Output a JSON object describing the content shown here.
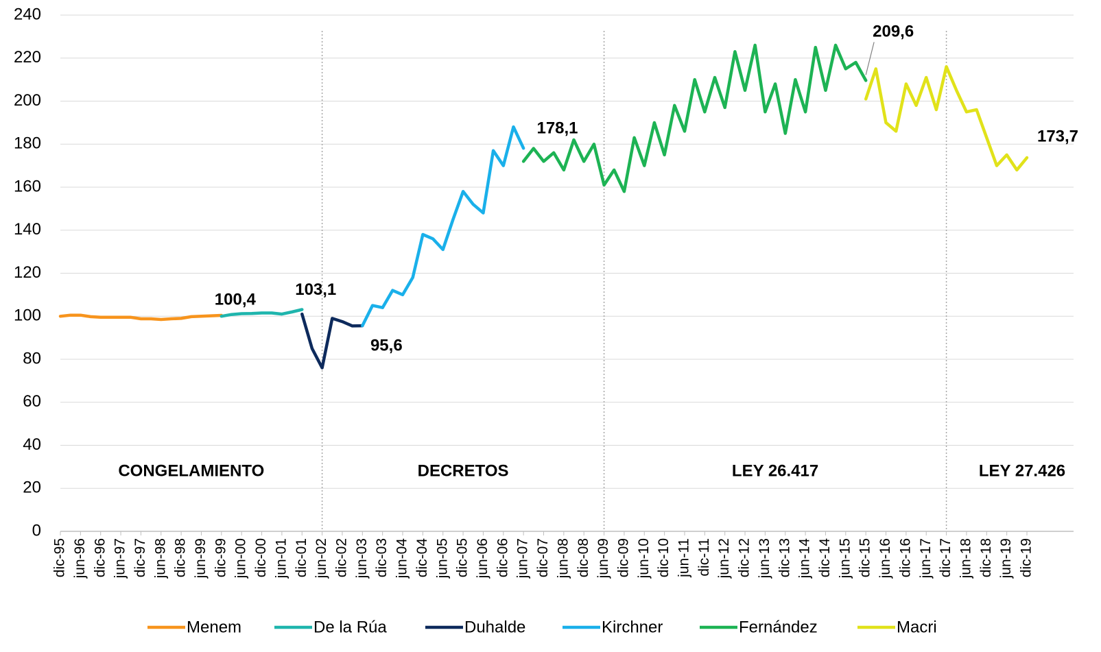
{
  "chart_data": {
    "type": "line",
    "categories": [
      "dic-95",
      null,
      "jun-96",
      null,
      "dic-96",
      null,
      "jun-97",
      null,
      "dic-97",
      null,
      "jun-98",
      null,
      "dic-98",
      null,
      "jun-99",
      null,
      "dic-99",
      null,
      "jun-00",
      null,
      "dic-00",
      null,
      "jun-01",
      null,
      "dic-01",
      null,
      "jun-02",
      null,
      "dic-02",
      null,
      "jun-03",
      null,
      "dic-03",
      null,
      "jun-04",
      null,
      "dic-04",
      null,
      "jun-05",
      null,
      "dic-05",
      null,
      "jun-06",
      null,
      "dic-06",
      null,
      "jun-07",
      null,
      "dic-07",
      null,
      "jun-08",
      null,
      "dic-08",
      null,
      "jun-09",
      null,
      "dic-09",
      null,
      "jun-10",
      null,
      "dic-10",
      null,
      "jun-11",
      null,
      "dic-11",
      null,
      "jun-12",
      null,
      "dic-12",
      null,
      "jun-13",
      null,
      "dic-13",
      null,
      "jun-14",
      null,
      "dic-14",
      null,
      "jun-15",
      null,
      "dic-15",
      null,
      "jun-16",
      null,
      "dic-16",
      null,
      "jun-17",
      null,
      "dic-17",
      null,
      "jun-18",
      null,
      "dic-18",
      null,
      "jun-19",
      null,
      "dic-19"
    ],
    "series": [
      {
        "name": "Menem",
        "color": "#f7941d",
        "values": [
          100,
          100.5,
          100.5,
          99.8,
          99.5,
          99.5,
          99.5,
          99.5,
          98.8,
          98.8,
          98.5,
          98.8,
          99,
          99.8,
          100,
          100.2,
          100.4,
          null,
          null,
          null,
          null,
          null,
          null,
          null,
          null,
          null,
          null,
          null,
          null,
          null,
          null,
          null,
          null,
          null,
          null,
          null,
          null,
          null,
          null,
          null,
          null,
          null,
          null,
          null,
          null,
          null,
          null,
          null,
          null,
          null,
          null,
          null,
          null,
          null,
          null,
          null,
          null,
          null,
          null,
          null,
          null,
          null,
          null,
          null,
          null,
          null,
          null,
          null,
          null,
          null,
          null,
          null,
          null,
          null,
          null,
          null,
          null,
          null,
          null,
          null,
          null,
          null,
          null,
          null,
          null,
          null,
          null,
          null,
          null,
          null,
          null,
          null,
          null,
          null,
          null,
          null,
          null
        ]
      },
      {
        "name": "De la Rúa",
        "color": "#1fb5ad",
        "values": [
          null,
          null,
          null,
          null,
          null,
          null,
          null,
          null,
          null,
          null,
          null,
          null,
          null,
          null,
          null,
          null,
          100,
          100.8,
          101.2,
          101.3,
          101.5,
          101.5,
          101,
          102,
          103.1,
          null,
          null,
          null,
          null,
          null,
          null,
          null,
          null,
          null,
          null,
          null,
          null,
          null,
          null,
          null,
          null,
          null,
          null,
          null,
          null,
          null,
          null,
          null,
          null,
          null,
          null,
          null,
          null,
          null,
          null,
          null,
          null,
          null,
          null,
          null,
          null,
          null,
          null,
          null,
          null,
          null,
          null,
          null,
          null,
          null,
          null,
          null,
          null,
          null,
          null,
          null,
          null,
          null,
          null,
          null,
          null,
          null,
          null,
          null,
          null,
          null,
          null,
          null,
          null,
          null,
          null,
          null,
          null,
          null,
          null,
          null,
          null
        ]
      },
      {
        "name": "Duhalde",
        "color": "#0d2a5c",
        "values": [
          null,
          null,
          null,
          null,
          null,
          null,
          null,
          null,
          null,
          null,
          null,
          null,
          null,
          null,
          null,
          null,
          null,
          null,
          null,
          null,
          null,
          null,
          null,
          null,
          101,
          85,
          76,
          99,
          97.5,
          95.5,
          95.6,
          null,
          null,
          null,
          null,
          null,
          null,
          null,
          null,
          null,
          null,
          null,
          null,
          null,
          null,
          null,
          null,
          null,
          null,
          null,
          null,
          null,
          null,
          null,
          null,
          null,
          null,
          null,
          null,
          null,
          null,
          null,
          null,
          null,
          null,
          null,
          null,
          null,
          null,
          null,
          null,
          null,
          null,
          null,
          null,
          null,
          null,
          null,
          null,
          null,
          null,
          null,
          null,
          null,
          null,
          null,
          null,
          null,
          null,
          null,
          null,
          null,
          null,
          null,
          null,
          null,
          null
        ]
      },
      {
        "name": "Kirchner",
        "color": "#1ab0ea",
        "values": [
          null,
          null,
          null,
          null,
          null,
          null,
          null,
          null,
          null,
          null,
          null,
          null,
          null,
          null,
          null,
          null,
          null,
          null,
          null,
          null,
          null,
          null,
          null,
          null,
          null,
          null,
          null,
          null,
          null,
          null,
          95.6,
          105,
          104,
          112,
          110,
          118,
          138,
          136,
          131,
          145,
          158,
          152,
          148,
          177,
          170,
          188,
          178.1,
          null,
          null,
          null,
          null,
          null,
          null,
          null,
          null,
          null,
          null,
          null,
          null,
          null,
          null,
          null,
          null,
          null,
          null,
          null,
          null,
          null,
          null,
          null,
          null,
          null,
          null,
          null,
          null,
          null,
          null,
          null,
          null,
          null,
          null,
          null,
          null,
          null,
          null,
          null,
          null,
          null,
          null,
          null,
          null,
          null,
          null,
          null,
          null,
          null,
          null
        ]
      },
      {
        "name": "Fernández",
        "color": "#1db354",
        "values": [
          null,
          null,
          null,
          null,
          null,
          null,
          null,
          null,
          null,
          null,
          null,
          null,
          null,
          null,
          null,
          null,
          null,
          null,
          null,
          null,
          null,
          null,
          null,
          null,
          null,
          null,
          null,
          null,
          null,
          null,
          null,
          null,
          null,
          null,
          null,
          null,
          null,
          null,
          null,
          null,
          null,
          null,
          null,
          null,
          null,
          null,
          172,
          178,
          172,
          176,
          168,
          182,
          172,
          180,
          161,
          168,
          158,
          183,
          170,
          190,
          175,
          198,
          186,
          210,
          195,
          211,
          197,
          223,
          205,
          226,
          195,
          208,
          185,
          210,
          195,
          225,
          205,
          226,
          215,
          218,
          209.6,
          null,
          null,
          null,
          null,
          null,
          null,
          null,
          null,
          null,
          null,
          null,
          null,
          null,
          null,
          null,
          null
        ]
      },
      {
        "name": "Macri",
        "color": "#e1e21a",
        "values": [
          null,
          null,
          null,
          null,
          null,
          null,
          null,
          null,
          null,
          null,
          null,
          null,
          null,
          null,
          null,
          null,
          null,
          null,
          null,
          null,
          null,
          null,
          null,
          null,
          null,
          null,
          null,
          null,
          null,
          null,
          null,
          null,
          null,
          null,
          null,
          null,
          null,
          null,
          null,
          null,
          null,
          null,
          null,
          null,
          null,
          null,
          null,
          null,
          null,
          null,
          null,
          null,
          null,
          null,
          null,
          null,
          null,
          null,
          null,
          null,
          null,
          null,
          null,
          null,
          null,
          null,
          null,
          null,
          null,
          null,
          null,
          null,
          null,
          null,
          null,
          null,
          null,
          null,
          null,
          null,
          201,
          215,
          190,
          186,
          208,
          198,
          211,
          196,
          216,
          205,
          195,
          196,
          183,
          170,
          175,
          168,
          173.7
        ]
      }
    ],
    "annotations": [
      {
        "text": "100,4",
        "x": "dic-99",
        "y": 100.4
      },
      {
        "text": "103,1",
        "x": "dic-01",
        "y": 103.1
      },
      {
        "text": "95,6",
        "x": "jun-03",
        "y": 95.6
      },
      {
        "text": "178,1",
        "x": "dic-07",
        "y": 178.1
      },
      {
        "text": "209,6",
        "x": "dic-15",
        "y": 209.6
      },
      {
        "text": "173,7",
        "x": "dic-19",
        "y": 173.7
      }
    ],
    "periods": [
      "CONGELAMIENTO",
      "DECRETOS",
      "LEY 26.417",
      "LEY 27.426"
    ],
    "period_breaks": [
      "jun-02",
      "jun-09",
      "dic-17"
    ],
    "ylim": [
      0,
      240
    ],
    "yticks": [
      0,
      20,
      40,
      60,
      80,
      100,
      120,
      140,
      160,
      180,
      200,
      220,
      240
    ],
    "grid": true,
    "legend": "bottom"
  }
}
